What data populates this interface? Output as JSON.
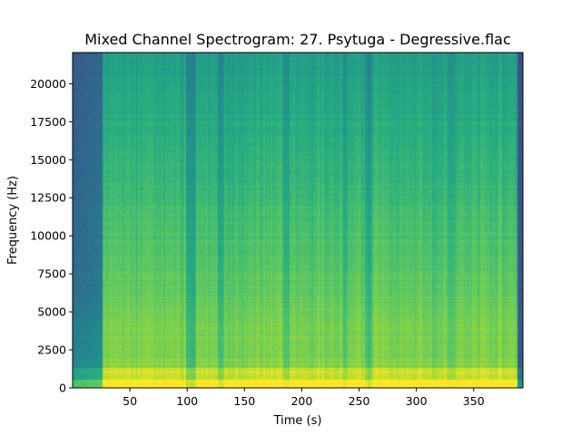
{
  "chart_data": {
    "type": "heatmap",
    "title": "Mixed Channel Spectrogram: 27. Psytuga - Degressive.flac",
    "xlabel": "Time (s)",
    "ylabel": "Frequency (Hz)",
    "xlim": [
      0,
      393
    ],
    "ylim": [
      0,
      22050
    ],
    "x_ticks": [
      50,
      100,
      150,
      200,
      250,
      300,
      350
    ],
    "x_tick_labels": [
      "50",
      "100",
      "150",
      "200",
      "250",
      "300",
      "350"
    ],
    "y_ticks": [
      0,
      2500,
      5000,
      7500,
      10000,
      12500,
      15000,
      17500,
      20000
    ],
    "y_tick_labels": [
      "0",
      "2500",
      "5000",
      "7500",
      "10000",
      "12500",
      "15000",
      "17500",
      "20000"
    ],
    "colormap": "viridis",
    "grid": false
  }
}
